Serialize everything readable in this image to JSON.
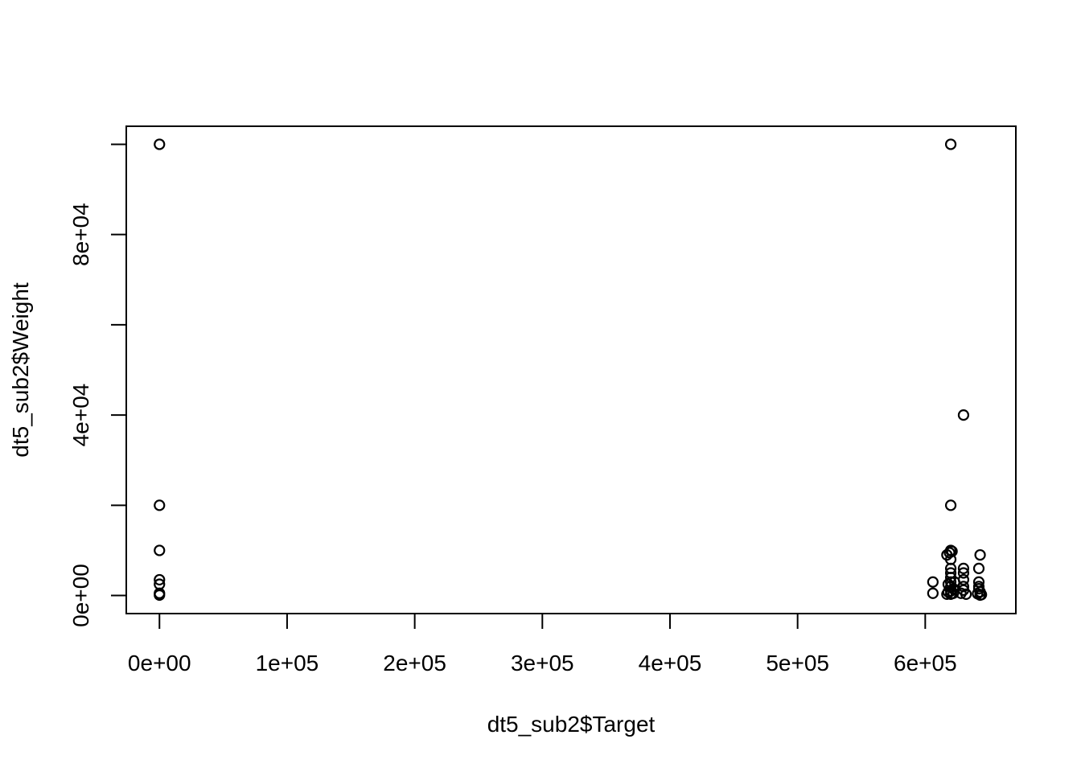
{
  "chart_data": {
    "type": "scatter",
    "title": "",
    "xlabel": "dt5_sub2$Target",
    "ylabel": "dt5_sub2$Weight",
    "xlim": [
      -26000,
      671000
    ],
    "ylim": [
      -4000,
      104000
    ],
    "x_ticks": [
      0,
      100000,
      200000,
      300000,
      400000,
      500000,
      600000
    ],
    "x_tick_labels": [
      "0e+00",
      "1e+05",
      "2e+05",
      "3e+05",
      "4e+05",
      "5e+05",
      "6e+05"
    ],
    "y_ticks": [
      0,
      20000,
      40000,
      60000,
      80000,
      100000
    ],
    "y_tick_labels": [
      "0e+00",
      "",
      "4e+04",
      "",
      "8e+04",
      ""
    ],
    "grid": false,
    "legend": "none",
    "marker": "open-circle",
    "color": "#000000",
    "points": [
      [
        0,
        100000
      ],
      [
        0,
        20000
      ],
      [
        0,
        10000
      ],
      [
        0,
        3500
      ],
      [
        0,
        2500
      ],
      [
        0,
        500
      ],
      [
        0,
        100
      ],
      [
        620000,
        100000
      ],
      [
        620000,
        20000
      ],
      [
        620000,
        10000
      ],
      [
        619000,
        9500
      ],
      [
        621000,
        9800
      ],
      [
        620000,
        8000
      ],
      [
        620000,
        6000
      ],
      [
        620000,
        5000
      ],
      [
        620000,
        4000
      ],
      [
        620000,
        3000
      ],
      [
        620000,
        2000
      ],
      [
        620000,
        1000
      ],
      [
        620000,
        300
      ],
      [
        618000,
        2500
      ],
      [
        618000,
        800
      ],
      [
        622000,
        1500
      ],
      [
        622000,
        500
      ],
      [
        623000,
        3000
      ],
      [
        617000,
        9000
      ],
      [
        617000,
        300
      ],
      [
        606000,
        3000
      ],
      [
        606000,
        500
      ],
      [
        630000,
        40000
      ],
      [
        630000,
        6000
      ],
      [
        630000,
        5000
      ],
      [
        630000,
        3500
      ],
      [
        630000,
        2000
      ],
      [
        630000,
        1200
      ],
      [
        628000,
        500
      ],
      [
        632000,
        300
      ],
      [
        643000,
        9000
      ],
      [
        642000,
        6000
      ],
      [
        642000,
        3000
      ],
      [
        642000,
        1500
      ],
      [
        643000,
        800
      ],
      [
        641000,
        400
      ],
      [
        644000,
        200
      ],
      [
        642000,
        2000
      ],
      [
        643000,
        100
      ]
    ]
  }
}
